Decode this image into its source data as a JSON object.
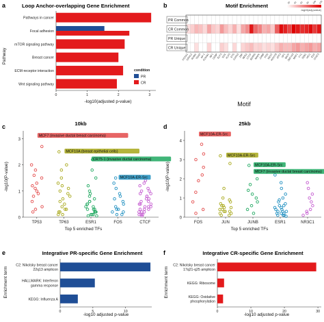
{
  "panel_labels": [
    "a",
    "b",
    "c",
    "d",
    "e",
    "f"
  ],
  "chart_data": [
    {
      "id": "a",
      "type": "bar",
      "title": "Loop Anchor-overlapping Gene Enrichment",
      "xlabel": "-log10(adjusted p-value)",
      "ylabel": "Pathway",
      "xlim": [
        0,
        3.2
      ],
      "xticks": [
        0,
        1,
        2,
        3
      ],
      "categories": [
        "Pathways in cancer",
        "Focal adhesion",
        "mTOR signaling pathway",
        "Breast cancer",
        "ECM-receptor interaction",
        "Wnt signaling pathway"
      ],
      "series": [
        {
          "name": "PR",
          "color": "#1f4e96",
          "values": [
            null,
            1.55,
            null,
            null,
            null,
            null
          ]
        },
        {
          "name": "CR",
          "color": "#e31a1c",
          "values": [
            3.05,
            2.35,
            2.2,
            2.0,
            2.15,
            1.95
          ]
        }
      ],
      "legend": {
        "title": "condition",
        "position": "right"
      },
      "grid": false
    },
    {
      "id": "b",
      "type": "heatmap",
      "title": "Motif Enrichment",
      "xlabel": "Motif",
      "rows": [
        "PR Common",
        "CR Common",
        "PR Unique",
        "CR Unique"
      ],
      "columns": [
        "FOXA1",
        "GRHL2",
        "RUNX",
        "TEAD",
        "AP-1",
        "FOXM1",
        "NF1",
        "CEBP",
        "ELF3",
        "SOX",
        "KLF5",
        "ETS",
        "GATA3",
        "ZNF",
        "NFE2",
        "CTCF",
        "BORIS",
        "MAFK",
        "JUNB",
        "FOS",
        "REST",
        "HOXC9",
        "ATF3",
        "SP1",
        "BATF",
        "ZNF143",
        "NRF1",
        "YY1",
        "ZEB1",
        "HIC1",
        "E2A",
        "STAT3"
      ],
      "values": [
        [
          0,
          0,
          0,
          0,
          0,
          0,
          0,
          0,
          0,
          0,
          0,
          0,
          0,
          0,
          0,
          0,
          0,
          0,
          0,
          0,
          0,
          0,
          0,
          0,
          0,
          0,
          0,
          0,
          0,
          0,
          0,
          0
        ],
        [
          0.05,
          0.12,
          0.22,
          0.18,
          0.08,
          0.3,
          0.15,
          0.1,
          0.35,
          0.2,
          0.1,
          0.25,
          0.05,
          0.3,
          0.4,
          0.9,
          0.55,
          0.45,
          0.25,
          0.3,
          0.15,
          0.6,
          0.95,
          0.85,
          0.7,
          1.0,
          0.9,
          0.8,
          0.85,
          0.95,
          0.75,
          0.9
        ],
        [
          0,
          0,
          0,
          0,
          0,
          0,
          0,
          0,
          0,
          0,
          0,
          0,
          0,
          0,
          0,
          0,
          0,
          0,
          0,
          0,
          0,
          0,
          0,
          0,
          0,
          0,
          0,
          0,
          0,
          0,
          0,
          0
        ],
        [
          0,
          0,
          0.05,
          0,
          0,
          0.1,
          0,
          0,
          0.12,
          0.05,
          0,
          0.08,
          0,
          0.1,
          0.15,
          0.2,
          0.1,
          0.12,
          0.05,
          0.1,
          0.05,
          0.15,
          0.25,
          0.2,
          0.2,
          0.3,
          0.35,
          0.25,
          0.3,
          0.35,
          0.25,
          0.3
        ]
      ],
      "legend": {
        "title": "-log10(adj.pvalue)",
        "ticks": [
          "20",
          "40",
          "60",
          "80",
          "100",
          "120"
        ],
        "position": "top-right"
      }
    },
    {
      "id": "c",
      "type": "scatter",
      "title": "10kb",
      "xlabel": "Top 5 enriched TFs",
      "ylabel": "-log10(P-value)",
      "ylim": [
        0,
        3.3
      ],
      "yticks": [
        0,
        1,
        2,
        3
      ],
      "categories": [
        "TP53",
        "TP63",
        "ESR1",
        "FOS",
        "CTCF"
      ],
      "colors": [
        "#e34a4a",
        "#a8a81a",
        "#1fa860",
        "#1f8fc0",
        "#c45ad0"
      ],
      "points": [
        [
          3.1,
          2.7,
          2.0,
          1.8,
          1.5,
          1.2,
          1.1,
          1.0,
          0.9,
          0.8,
          0.6,
          0.4,
          0.3,
          0.2,
          1.3,
          1.6
        ],
        [
          2.5,
          2.0,
          1.8,
          1.5,
          1.3,
          1.1,
          1.0,
          0.9,
          0.7,
          0.6,
          0.5,
          0.4,
          0.3,
          0.3,
          0.2,
          0.2,
          0.1,
          0.1,
          0.8,
          1.2
        ],
        [
          2.2,
          1.8,
          1.5,
          1.2,
          1.0,
          0.9,
          0.8,
          0.7,
          0.6,
          0.6,
          0.5,
          0.5,
          0.4,
          0.4,
          0.3,
          0.3,
          0.3,
          0.2,
          0.2,
          0.2,
          0.1,
          0.1,
          0.1,
          0.05,
          0.05
        ],
        [
          1.5,
          1.3,
          1.1,
          0.9,
          0.8,
          0.7,
          0.6,
          0.5,
          0.4,
          0.3,
          0.3,
          0.2,
          0.2,
          0.1,
          0.1
        ],
        [
          1.4,
          1.3,
          1.2,
          1.1,
          1.0,
          1.0,
          0.9,
          0.9,
          0.8,
          0.8,
          0.7,
          0.7,
          0.6,
          0.6,
          0.5,
          0.5,
          0.5,
          0.4,
          0.4,
          0.4,
          0.3,
          0.3,
          0.3,
          0.2,
          0.2,
          0.2,
          0.1,
          0.1,
          0.1,
          0.05
        ]
      ],
      "annotations": [
        {
          "text": "MCF7 (invasive ductal breast carcinoma)",
          "category": "TP53",
          "y": 3.1
        },
        {
          "text": "MCF10A (breast epithelial cells)",
          "category": "TP63",
          "y": 2.5
        },
        {
          "text": "CR75-1 (invasive ductal carcinoma)",
          "category": "ESR1",
          "y": 2.2
        },
        {
          "text": "MCF10A-ER-Src",
          "category": "FOS",
          "y": 1.5
        }
      ]
    },
    {
      "id": "d",
      "type": "scatter",
      "title": "25kb",
      "xlabel": "Top 5 enriched TFs",
      "ylabel": "-log10(P-value)",
      "ylim": [
        0,
        4.5
      ],
      "yticks": [
        0,
        1,
        2,
        3,
        4
      ],
      "categories": [
        "FOS",
        "JUN",
        "JUNB",
        "ESR1",
        "NR3C1"
      ],
      "colors": [
        "#e34a4a",
        "#a8a81a",
        "#1fa860",
        "#1f8fc0",
        "#c45ad0"
      ],
      "points": [
        [
          4.3,
          3.8,
          3.3,
          3.0,
          2.6,
          2.2,
          1.9,
          1.3,
          0.8,
          0.4,
          0.2
        ],
        [
          3.2,
          2.8,
          1.5,
          1.0,
          0.9,
          0.8,
          0.7,
          0.6,
          0.6,
          0.5,
          0.5,
          0.4,
          0.4,
          0.3,
          0.3,
          0.3,
          0.2,
          0.2,
          0.1,
          0.1
        ],
        [
          2.7,
          2.4,
          2.0,
          1.7,
          1.4,
          1.2,
          1.0,
          0.8,
          0.6,
          0.4,
          0.2
        ],
        [
          2.2,
          1.8,
          1.5,
          1.2,
          1.0,
          0.9,
          0.8,
          0.7,
          0.6,
          0.6,
          0.5,
          0.5,
          0.4,
          0.4,
          0.3,
          0.3,
          0.3,
          0.2,
          0.2,
          0.2,
          0.1,
          0.1,
          0.1,
          0.05
        ],
        [
          1.8,
          1.5,
          1.2,
          1.0,
          0.8,
          0.6,
          0.4,
          0.3,
          0.2,
          0.1
        ]
      ],
      "annotations": [
        {
          "text": "MCF10A-ER-Src",
          "category": "FOS",
          "y": 4.3
        },
        {
          "text": "MCF10A-ER-Src",
          "category": "JUN",
          "y": 3.2
        },
        {
          "text": "MCF10A-ER-Src",
          "category": "JUNB",
          "y": 2.7
        },
        {
          "text": "MCF7 (invasive ductal breast carcinoma)",
          "category": "JUNB",
          "y": 2.35
        }
      ]
    },
    {
      "id": "e",
      "type": "bar",
      "title": "Integrative PR-specific Gene Enrichment",
      "xlabel": "-log10 adjusted p-value",
      "ylabel": "Enrichment term",
      "xlim": [
        0,
        14
      ],
      "xticks": [
        0,
        5,
        10
      ],
      "categories": [
        "C2: Nikolsky breast cancer 22q13 amplicon",
        "HALLMARK: Interferon gamma response",
        "KEGG: Influenza A"
      ],
      "category_lines": [
        [
          "C2: Nikolsky breast cancer",
          "22q13 amplicon"
        ],
        [
          "HALLMARK: Interferon",
          "gamma response"
        ],
        [
          "KEGG: Influenza A"
        ]
      ],
      "series": [
        {
          "color": "#1f4e96",
          "values": [
            13.8,
            5.3,
            2.7
          ]
        }
      ]
    },
    {
      "id": "f",
      "type": "bar",
      "title": "Integrative CR-specific Gene Enrichment",
      "xlabel": "-log10 adjusted p-value",
      "ylabel": "Enrichment term",
      "xlim": [
        0,
        31
      ],
      "xticks": [
        0,
        10,
        20,
        30
      ],
      "categories": [
        "C2: Nikolsky breast cancer 17q21-q25 amplicon",
        "KEGG: Ribosome",
        "KEGG: Oxidative phosphorylation"
      ],
      "category_lines": [
        [
          "C2: Nikolsky breast cancer",
          "17q21-q25 amplicon"
        ],
        [
          "KEGG: Ribosome"
        ],
        [
          "KEGG: Oxidative",
          "phosphorylation"
        ]
      ],
      "series": [
        {
          "color": "#e31a1c",
          "values": [
            29.5,
            2.0,
            1.7
          ]
        }
      ]
    }
  ]
}
